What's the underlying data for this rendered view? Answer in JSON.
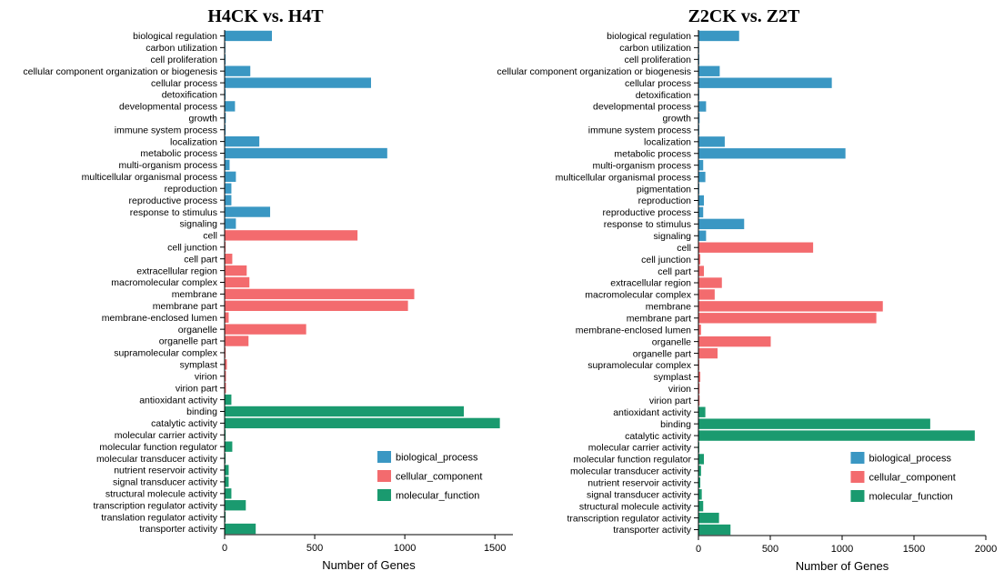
{
  "legend": [
    {
      "key": "bp",
      "label": "biological_process",
      "color": "#3a97c3"
    },
    {
      "key": "cc",
      "label": "cellular_component",
      "color": "#f36b6e"
    },
    {
      "key": "mf",
      "label": "molecular_function",
      "color": "#1a9a6f"
    }
  ],
  "chart_data": [
    {
      "type": "bar",
      "orientation": "horizontal",
      "title": "H4CK vs. H4T",
      "xlabel": "Number of Genes",
      "xlim": [
        0,
        1600
      ],
      "xticks": [
        0,
        500,
        1000,
        1500
      ],
      "categories": [
        "biological regulation",
        "carbon utilization",
        "cell proliferation",
        "cellular component organization or biogenesis",
        "cellular process",
        "detoxification",
        "developmental process",
        "growth",
        "immune system process",
        "localization",
        "metabolic process",
        "multi-organism process",
        "multicellular organismal process",
        "reproduction",
        "reproductive process",
        "response to stimulus",
        "signaling",
        "cell",
        "cell junction",
        "cell part",
        "extracellular region",
        "macromolecular complex",
        "membrane",
        "membrane part",
        "membrane-enclosed lumen",
        "organelle",
        "organelle part",
        "supramolecular complex",
        "symplast",
        "virion",
        "virion part",
        "antioxidant activity",
        "binding",
        "catalytic activity",
        "molecular carrier activity",
        "molecular function regulator",
        "molecular transducer activity",
        "nutrient reservoir activity",
        "signal transducer activity",
        "structural molecule activity",
        "transcription regulator activity",
        "translation regulator activity",
        "transporter activity"
      ],
      "groups": [
        "bp",
        "bp",
        "bp",
        "bp",
        "bp",
        "bp",
        "bp",
        "bp",
        "bp",
        "bp",
        "bp",
        "bp",
        "bp",
        "bp",
        "bp",
        "bp",
        "bp",
        "cc",
        "cc",
        "cc",
        "cc",
        "cc",
        "cc",
        "cc",
        "cc",
        "cc",
        "cc",
        "cc",
        "cc",
        "cc",
        "cc",
        "mf",
        "mf",
        "mf",
        "mf",
        "mf",
        "mf",
        "mf",
        "mf",
        "mf",
        "mf",
        "mf",
        "mf"
      ],
      "values": [
        260,
        2,
        3,
        140,
        810,
        3,
        55,
        4,
        3,
        190,
        900,
        25,
        60,
        35,
        35,
        250,
        60,
        735,
        3,
        40,
        120,
        135,
        1050,
        1015,
        20,
        450,
        130,
        3,
        10,
        5,
        5,
        35,
        1325,
        1525,
        3,
        40,
        3,
        20,
        20,
        35,
        115,
        3,
        170
      ],
      "legend_position": "bottom-right"
    },
    {
      "type": "bar",
      "orientation": "horizontal",
      "title": "Z2CK vs. Z2T",
      "xlabel": "Number of Genes",
      "xlim": [
        0,
        2000
      ],
      "xticks": [
        0,
        500,
        1000,
        1500,
        2000
      ],
      "categories": [
        "biological regulation",
        "carbon utilization",
        "cell proliferation",
        "cellular component organization or biogenesis",
        "cellular process",
        "detoxification",
        "developmental process",
        "growth",
        "immune system process",
        "localization",
        "metabolic process",
        "multi-organism process",
        "multicellular organismal process",
        "pigmentation",
        "reproduction",
        "reproductive process",
        "response to stimulus",
        "signaling",
        "cell",
        "cell junction",
        "cell part",
        "extracellular region",
        "macromolecular complex",
        "membrane",
        "membrane part",
        "membrane-enclosed lumen",
        "organelle",
        "organelle part",
        "supramolecular complex",
        "symplast",
        "virion",
        "virion part",
        "antioxidant activity",
        "binding",
        "catalytic activity",
        "molecular carrier activity",
        "molecular function regulator",
        "molecular transducer activity",
        "nutrient reservoir activity",
        "signal transducer activity",
        "structural molecule activity",
        "transcription regulator activity",
        "transporter activity"
      ],
      "groups": [
        "bp",
        "bp",
        "bp",
        "bp",
        "bp",
        "bp",
        "bp",
        "bp",
        "bp",
        "bp",
        "bp",
        "bp",
        "bp",
        "bp",
        "bp",
        "bp",
        "bp",
        "bp",
        "cc",
        "cc",
        "cc",
        "cc",
        "cc",
        "cc",
        "cc",
        "cc",
        "cc",
        "cc",
        "cc",
        "cc",
        "cc",
        "cc",
        "mf",
        "mf",
        "mf",
        "mf",
        "mf",
        "mf",
        "mf",
        "mf",
        "mf",
        "mf",
        "mf"
      ],
      "values": [
        280,
        2,
        3,
        145,
        925,
        3,
        50,
        5,
        3,
        180,
        1020,
        30,
        45,
        3,
        35,
        30,
        315,
        50,
        795,
        10,
        35,
        160,
        110,
        1280,
        1235,
        15,
        500,
        130,
        3,
        10,
        5,
        5,
        45,
        1610,
        1920,
        3,
        35,
        15,
        10,
        20,
        30,
        140,
        220
      ],
      "legend_position": "bottom-right"
    }
  ]
}
